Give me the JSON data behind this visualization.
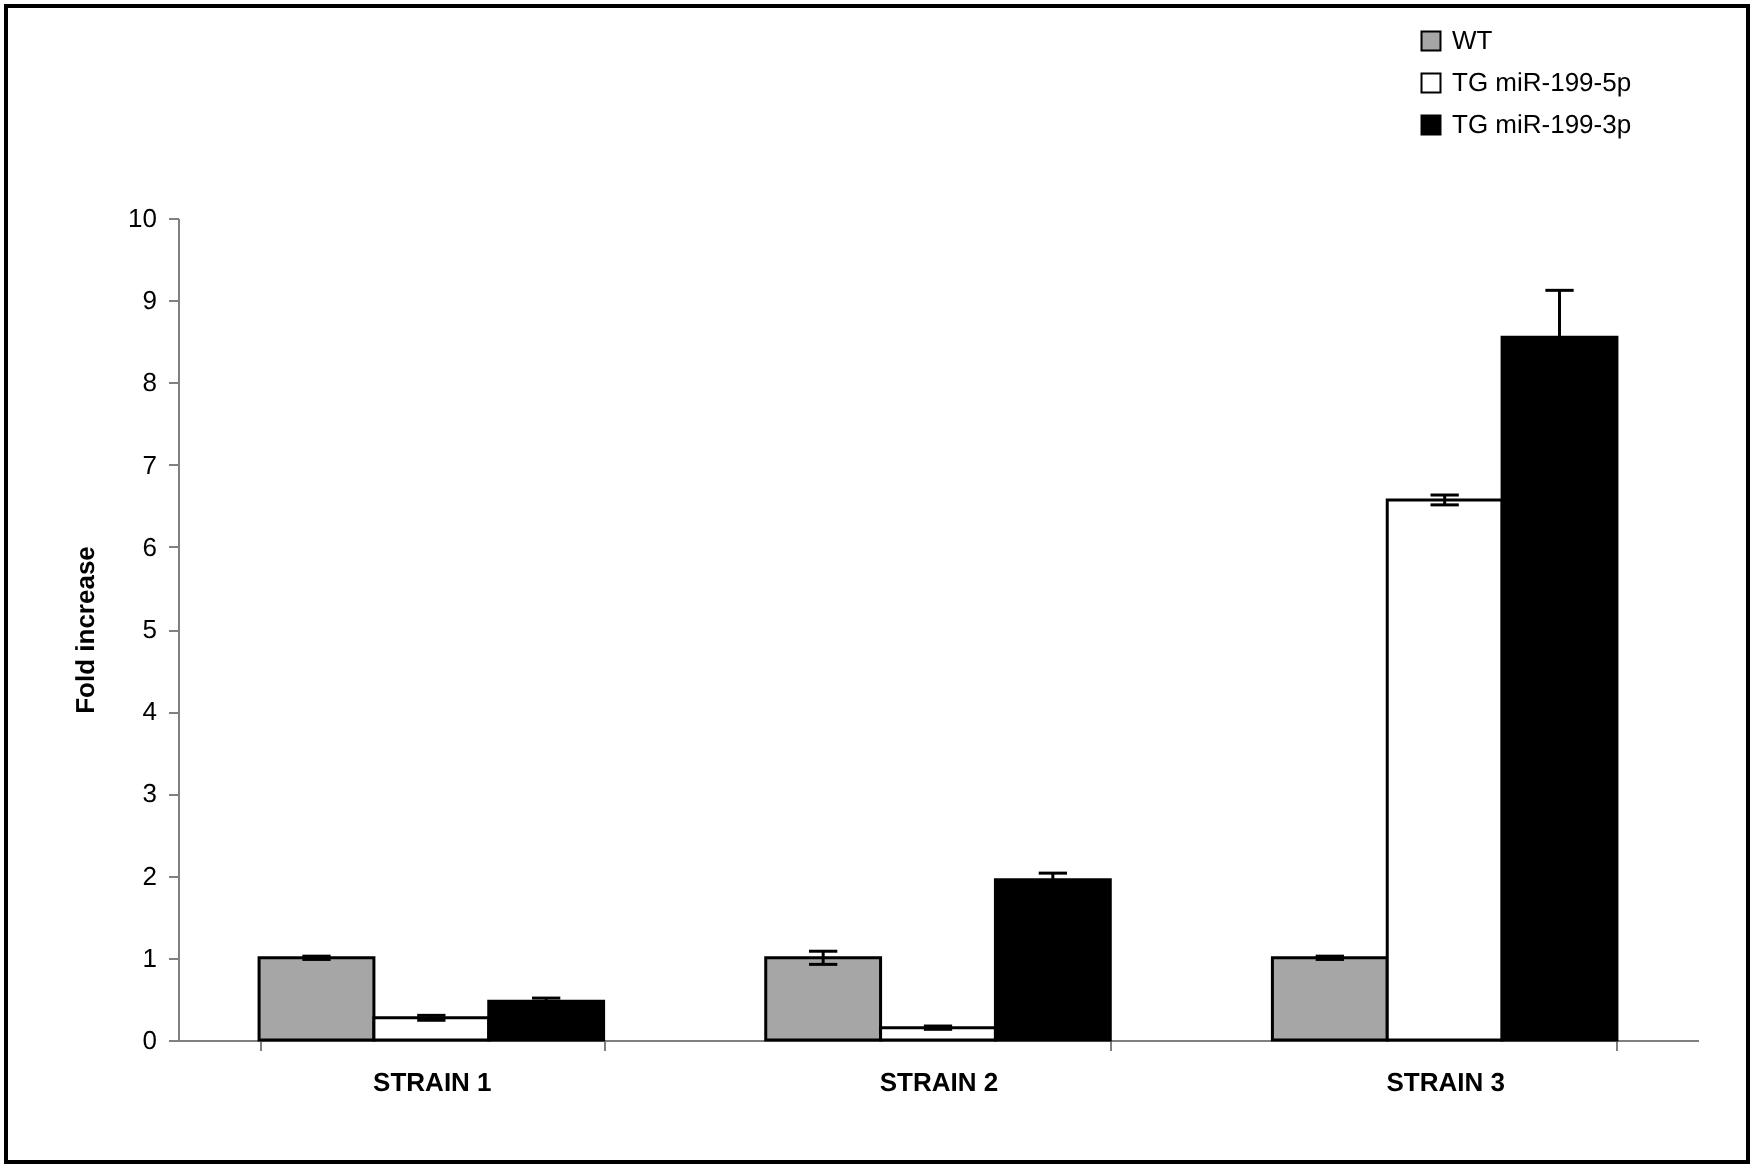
{
  "chart_data": {
    "type": "bar",
    "ylabel": "Fold increase",
    "categories": [
      "STRAIN 1",
      "STRAIN 2",
      "STRAIN 3"
    ],
    "series": [
      {
        "name": "WT",
        "color": "#a6a6a6",
        "values": [
          1.0,
          1.0,
          1.0
        ],
        "errors": [
          0.02,
          0.08,
          0.02
        ]
      },
      {
        "name": "TG miR-199-5p",
        "color": "#ffffff",
        "values": [
          0.27,
          0.15,
          6.57
        ],
        "errors": [
          0.03,
          0.02,
          0.06
        ]
      },
      {
        "name": "TG miR-199-3p",
        "color": "#000000",
        "values": [
          0.47,
          1.95,
          8.55
        ],
        "errors": [
          0.04,
          0.08,
          0.57
        ]
      }
    ],
    "ylim": [
      0,
      10
    ],
    "yticks": [
      0,
      1,
      2,
      3,
      4,
      5,
      6,
      7,
      8,
      9,
      10
    ],
    "grid": false,
    "legend": "top right"
  }
}
